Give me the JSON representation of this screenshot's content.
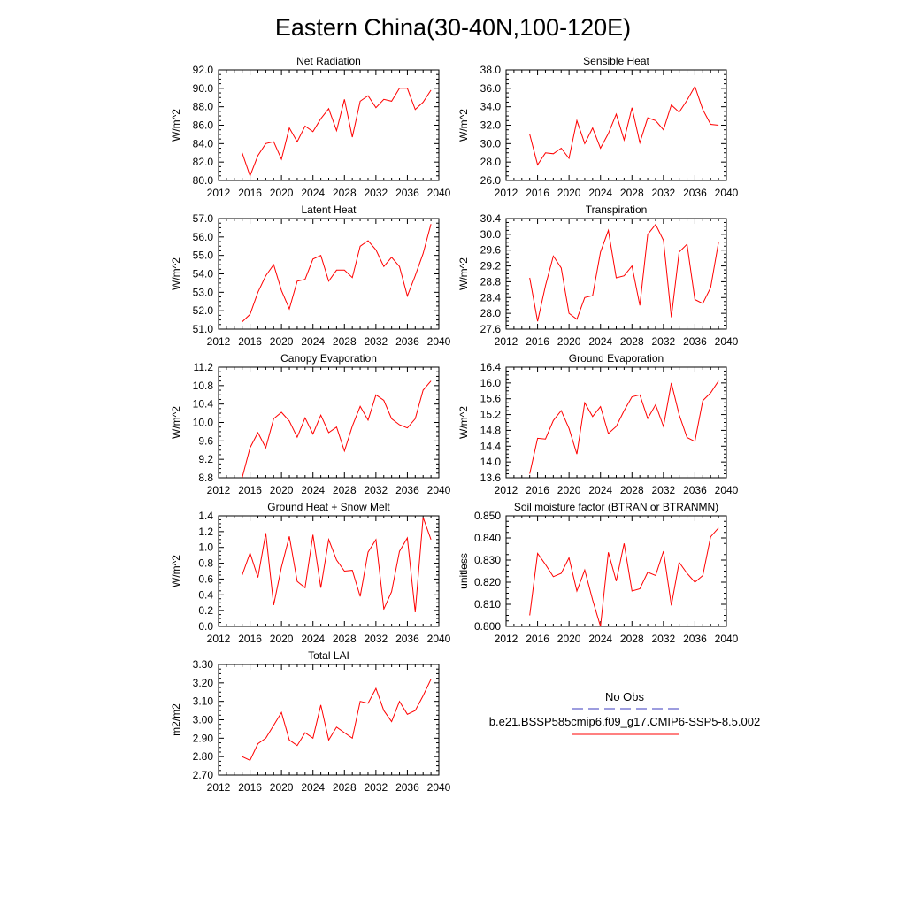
{
  "figure": {
    "title": "Eastern China(30-40N,100-120E)",
    "colors": {
      "model": "#ff0000",
      "obs": "#3b3bbf",
      "axes": "#000000"
    }
  },
  "legend": {
    "obs_label": "No Obs",
    "model_label": "b.e21.BSSP585cmip6.f09_g17.CMIP6-SSP5-8.5.002"
  },
  "chart_data": [
    {
      "type": "line",
      "title": "Net Radiation",
      "ylabel": "W/m^2",
      "xlim": [
        2012,
        2040
      ],
      "xticks": [
        "2012",
        "2016",
        "2020",
        "2024",
        "2028",
        "2032",
        "2036",
        "2040"
      ],
      "ylim": [
        80,
        92
      ],
      "yticks": [
        "80.0",
        "82.0",
        "84.0",
        "86.0",
        "88.0",
        "90.0",
        "92.0"
      ],
      "series": [
        {
          "x": [
            2015,
            2016,
            2017,
            2018,
            2019,
            2020,
            2021,
            2022,
            2023,
            2024,
            2025,
            2026,
            2027,
            2028,
            2029,
            2030,
            2031,
            2032,
            2033,
            2034,
            2035,
            2036,
            2037,
            2038,
            2039
          ],
          "y": [
            83.0,
            80.5,
            82.7,
            84.0,
            84.2,
            82.3,
            85.7,
            84.2,
            85.9,
            85.3,
            86.7,
            87.8,
            85.4,
            88.8,
            84.7,
            88.6,
            89.2,
            87.9,
            88.8,
            88.6,
            90.0,
            90.0,
            87.7,
            88.5,
            89.8
          ]
        }
      ]
    },
    {
      "type": "line",
      "title": "Sensible Heat",
      "ylabel": "W/m^2",
      "xlim": [
        2012,
        2040
      ],
      "xticks": [
        "2012",
        "2016",
        "2020",
        "2024",
        "2028",
        "2032",
        "2036",
        "2040"
      ],
      "ylim": [
        26,
        38
      ],
      "yticks": [
        "26.0",
        "28.0",
        "30.0",
        "32.0",
        "34.0",
        "36.0",
        "38.0"
      ],
      "series": [
        {
          "x": [
            2015,
            2016,
            2017,
            2018,
            2019,
            2020,
            2021,
            2022,
            2023,
            2024,
            2025,
            2026,
            2027,
            2028,
            2029,
            2030,
            2031,
            2032,
            2033,
            2034,
            2035,
            2036,
            2037,
            2038,
            2039
          ],
          "y": [
            31.0,
            27.7,
            29.0,
            28.9,
            29.5,
            28.4,
            32.5,
            30.0,
            31.7,
            29.5,
            31.1,
            33.2,
            30.4,
            33.9,
            30.1,
            32.8,
            32.5,
            31.5,
            34.2,
            33.4,
            34.7,
            36.2,
            33.7,
            32.1,
            32.0
          ]
        }
      ]
    },
    {
      "type": "line",
      "title": "Latent Heat",
      "ylabel": "W/m^2",
      "xlim": [
        2012,
        2040
      ],
      "xticks": [
        "2012",
        "2016",
        "2020",
        "2024",
        "2028",
        "2032",
        "2036",
        "2040"
      ],
      "ylim": [
        51,
        57
      ],
      "yticks": [
        "51.0",
        "52.0",
        "53.0",
        "54.0",
        "55.0",
        "56.0",
        "57.0"
      ],
      "series": [
        {
          "x": [
            2015,
            2016,
            2017,
            2018,
            2019,
            2020,
            2021,
            2022,
            2023,
            2024,
            2025,
            2026,
            2027,
            2028,
            2029,
            2030,
            2031,
            2032,
            2033,
            2034,
            2035,
            2036,
            2037,
            2038,
            2039
          ],
          "y": [
            51.4,
            51.8,
            53.0,
            53.9,
            54.5,
            53.1,
            52.1,
            53.6,
            53.7,
            54.8,
            55.0,
            53.6,
            54.2,
            54.2,
            53.8,
            55.5,
            55.8,
            55.3,
            54.4,
            54.9,
            54.4,
            52.8,
            53.9,
            55.1,
            56.7
          ]
        }
      ]
    },
    {
      "type": "line",
      "title": "Transpiration",
      "ylabel": "W/m^2",
      "xlim": [
        2012,
        2040
      ],
      "xticks": [
        "2012",
        "2016",
        "2020",
        "2024",
        "2028",
        "2032",
        "2036",
        "2040"
      ],
      "ylim": [
        27.6,
        30.4
      ],
      "yticks": [
        "27.6",
        "28.0",
        "28.4",
        "28.8",
        "29.2",
        "29.6",
        "30.0",
        "30.4"
      ],
      "series": [
        {
          "x": [
            2015,
            2016,
            2017,
            2018,
            2019,
            2020,
            2021,
            2022,
            2023,
            2024,
            2025,
            2026,
            2027,
            2028,
            2029,
            2030,
            2031,
            2032,
            2033,
            2034,
            2035,
            2036,
            2037,
            2038,
            2039
          ],
          "y": [
            28.9,
            27.8,
            28.7,
            29.45,
            29.15,
            28.0,
            27.85,
            28.4,
            28.45,
            29.55,
            30.1,
            28.9,
            28.95,
            29.2,
            28.2,
            30.0,
            30.25,
            29.85,
            27.9,
            29.55,
            29.75,
            28.35,
            28.25,
            28.65,
            29.8
          ]
        }
      ]
    },
    {
      "type": "line",
      "title": "Canopy Evaporation",
      "ylabel": "W/m^2",
      "xlim": [
        2012,
        2040
      ],
      "xticks": [
        "2012",
        "2016",
        "2020",
        "2024",
        "2028",
        "2032",
        "2036",
        "2040"
      ],
      "ylim": [
        8.8,
        11.2
      ],
      "yticks": [
        "8.8",
        "9.2",
        "9.6",
        "10.0",
        "10.4",
        "10.8",
        "11.2"
      ],
      "series": [
        {
          "x": [
            2015,
            2016,
            2017,
            2018,
            2019,
            2020,
            2021,
            2022,
            2023,
            2024,
            2025,
            2026,
            2027,
            2028,
            2029,
            2030,
            2031,
            2032,
            2033,
            2034,
            2035,
            2036,
            2037,
            2038,
            2039
          ],
          "y": [
            8.8,
            9.45,
            9.78,
            9.45,
            10.08,
            10.22,
            10.03,
            9.68,
            10.1,
            9.75,
            10.16,
            9.78,
            9.9,
            9.38,
            9.92,
            10.35,
            10.05,
            10.6,
            10.48,
            10.08,
            9.95,
            9.88,
            10.08,
            10.7,
            10.9
          ]
        }
      ]
    },
    {
      "type": "line",
      "title": "Ground Evaporation",
      "ylabel": "W/m^2",
      "xlim": [
        2012,
        2040
      ],
      "xticks": [
        "2012",
        "2016",
        "2020",
        "2024",
        "2028",
        "2032",
        "2036",
        "2040"
      ],
      "ylim": [
        13.6,
        16.4
      ],
      "yticks": [
        "13.6",
        "14.0",
        "14.4",
        "14.8",
        "15.2",
        "15.6",
        "16.0",
        "16.4"
      ],
      "series": [
        {
          "x": [
            2015,
            2016,
            2017,
            2018,
            2019,
            2020,
            2021,
            2022,
            2023,
            2024,
            2025,
            2026,
            2027,
            2028,
            2029,
            2030,
            2031,
            2032,
            2033,
            2034,
            2035,
            2036,
            2037,
            2038,
            2039
          ],
          "y": [
            13.7,
            14.6,
            14.58,
            15.05,
            15.3,
            14.85,
            14.2,
            15.5,
            15.15,
            15.4,
            14.72,
            14.9,
            15.3,
            15.65,
            15.7,
            15.1,
            15.45,
            14.9,
            16.0,
            15.2,
            14.62,
            14.52,
            15.55,
            15.75,
            16.05
          ]
        }
      ]
    },
    {
      "type": "line",
      "title": "Ground Heat + Snow Melt",
      "ylabel": "W/m^2",
      "xlim": [
        2012,
        2040
      ],
      "xticks": [
        "2012",
        "2016",
        "2020",
        "2024",
        "2028",
        "2032",
        "2036",
        "2040"
      ],
      "ylim": [
        0.0,
        1.4
      ],
      "yticks": [
        "0.0",
        "0.2",
        "0.4",
        "0.6",
        "0.8",
        "1.0",
        "1.2",
        "1.4"
      ],
      "series": [
        {
          "x": [
            2015,
            2016,
            2017,
            2018,
            2019,
            2020,
            2021,
            2022,
            2023,
            2024,
            2025,
            2026,
            2027,
            2028,
            2029,
            2030,
            2031,
            2032,
            2033,
            2034,
            2035,
            2036,
            2037,
            2038,
            2039
          ],
          "y": [
            0.65,
            0.93,
            0.62,
            1.18,
            0.27,
            0.75,
            1.14,
            0.57,
            0.49,
            1.16,
            0.49,
            1.1,
            0.84,
            0.7,
            0.71,
            0.38,
            0.94,
            1.1,
            0.22,
            0.44,
            0.95,
            1.12,
            0.18,
            1.38,
            1.1
          ]
        }
      ]
    },
    {
      "type": "line",
      "title": "Soil moisture factor (BTRAN or BTRANMN)",
      "ylabel": "unitless",
      "xlim": [
        2012,
        2040
      ],
      "xticks": [
        "2012",
        "2016",
        "2020",
        "2024",
        "2028",
        "2032",
        "2036",
        "2040"
      ],
      "ylim": [
        0.8,
        0.85
      ],
      "yticks": [
        "0.800",
        "0.810",
        "0.820",
        "0.830",
        "0.840",
        "0.850"
      ],
      "series": [
        {
          "x": [
            2015,
            2016,
            2017,
            2018,
            2019,
            2020,
            2021,
            2022,
            2023,
            2024,
            2025,
            2026,
            2027,
            2028,
            2029,
            2030,
            2031,
            2032,
            2033,
            2034,
            2035,
            2036,
            2037,
            2038,
            2039
          ],
          "y": [
            0.805,
            0.833,
            0.828,
            0.8225,
            0.824,
            0.831,
            0.816,
            0.8255,
            0.812,
            0.8,
            0.8335,
            0.8205,
            0.8375,
            0.816,
            0.817,
            0.8245,
            0.823,
            0.834,
            0.8095,
            0.829,
            0.824,
            0.82,
            0.823,
            0.8405,
            0.8445
          ]
        }
      ]
    },
    {
      "type": "line",
      "title": "Total LAI",
      "ylabel": "m2/m2",
      "xlim": [
        2012,
        2040
      ],
      "xticks": [
        "2012",
        "2016",
        "2020",
        "2024",
        "2028",
        "2032",
        "2036",
        "2040"
      ],
      "ylim": [
        2.7,
        3.3
      ],
      "yticks": [
        "2.70",
        "2.80",
        "2.90",
        "3.00",
        "3.10",
        "3.20",
        "3.30"
      ],
      "series": [
        {
          "x": [
            2015,
            2016,
            2017,
            2018,
            2019,
            2020,
            2021,
            2022,
            2023,
            2024,
            2025,
            2026,
            2027,
            2028,
            2029,
            2030,
            2031,
            2032,
            2033,
            2034,
            2035,
            2036,
            2037,
            2038,
            2039
          ],
          "y": [
            2.8,
            2.78,
            2.87,
            2.9,
            2.97,
            3.04,
            2.89,
            2.86,
            2.93,
            2.9,
            3.08,
            2.89,
            2.96,
            2.93,
            2.9,
            3.1,
            3.09,
            3.17,
            3.05,
            2.99,
            3.1,
            3.03,
            3.05,
            3.13,
            3.22
          ]
        }
      ]
    }
  ]
}
